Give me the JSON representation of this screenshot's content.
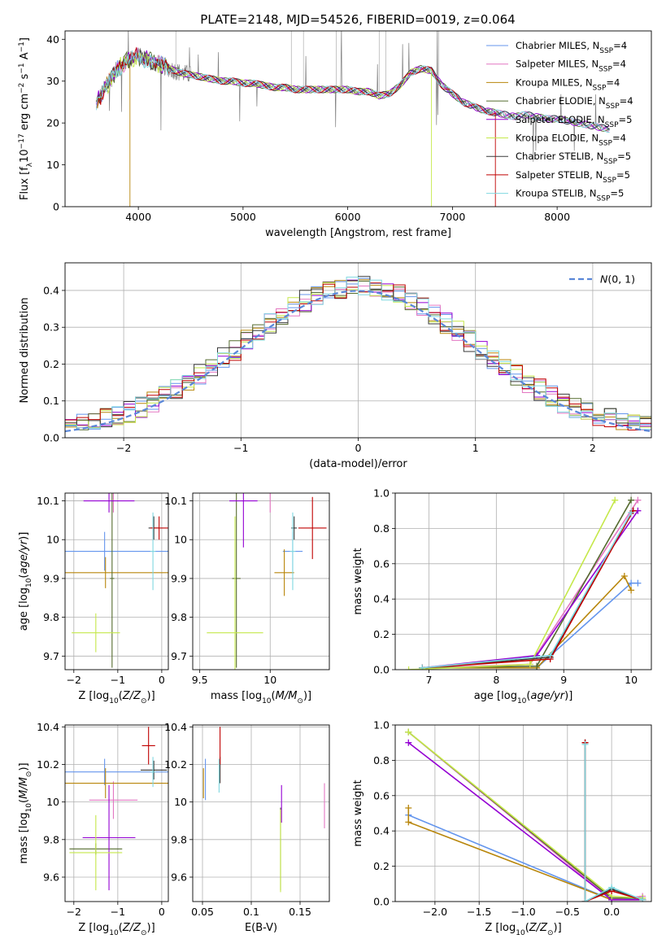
{
  "figure": {
    "title": "PLATE=2148, MJD=54526, FIBERID=0019, z=0.064"
  },
  "models": [
    {
      "name": "Chabrier MILES",
      "color": "#6495ed"
    },
    {
      "name": "Salpeter MILES",
      "color": "#e377c2"
    },
    {
      "name": "Kroupa MILES",
      "color": "#b8860b"
    },
    {
      "name": "Chabrier ELODIE",
      "color": "#556b2f"
    },
    {
      "name": "Salpeter ELODIE",
      "color": "#9400d3"
    },
    {
      "name": "Kroupa ELODIE",
      "color": "#c5e84a"
    },
    {
      "name": "Chabrier STELIB",
      "color": "#3a3a3a"
    },
    {
      "name": "Salpeter STELIB",
      "color": "#c00000"
    },
    {
      "name": "Kroupa STELIB",
      "color": "#7fd8e0"
    }
  ],
  "chart_data": [
    {
      "id": "spectrum",
      "type": "line",
      "xlabel": "wavelength [Angstrom, rest frame]",
      "ylabel": "Flux [f_λ 10^-17 erg cm^-2 s^-1 A^-1]",
      "xlim": [
        3300,
        8900
      ],
      "ylim": [
        0,
        42
      ],
      "xticks": [
        4000,
        5000,
        6000,
        7000,
        8000
      ],
      "yticks": [
        0,
        10,
        20,
        30,
        40
      ],
      "grid": false,
      "legend": [
        "Chabrier MILES, N_SSP=4",
        "Salpeter MILES, N_SSP=4",
        "Kroupa MILES, N_SSP=4",
        "Chabrier ELODIE, N_SSP=4",
        "Salpeter ELODIE, N_SSP=5",
        "Kroupa ELODIE, N_SSP=4",
        "Chabrier STELIB, N_SSP=5",
        "Salpeter STELIB, N_SSP=5",
        "Kroupa STELIB, N_SSP=5"
      ],
      "legend_position": "top-right",
      "data_continuum": {
        "x": [
          3600,
          3700,
          3800,
          3900,
          4000,
          4100,
          4200,
          4300,
          4400,
          4500,
          4600,
          4700,
          4800,
          4900,
          5000,
          5100,
          5200,
          5300,
          5400,
          5500,
          5600,
          5700,
          5800,
          5900,
          6000,
          6100,
          6200,
          6300,
          6400,
          6500,
          6600,
          6700,
          6800,
          6900,
          7000,
          7100,
          7200,
          7300,
          7400,
          7500,
          7600,
          7700,
          7800,
          7900,
          8000,
          8100,
          8200,
          8300,
          8400,
          8500
        ],
        "y": [
          25,
          29,
          33,
          35,
          36,
          35,
          34,
          33,
          32,
          31.5,
          31,
          30.5,
          30,
          30,
          29.5,
          29.5,
          29,
          28.5,
          28.5,
          28,
          28,
          28,
          28,
          28,
          28,
          27.5,
          27.5,
          26.5,
          27,
          29,
          32,
          33,
          32.5,
          29,
          27,
          25,
          24,
          23,
          22.5,
          22,
          21.5,
          22,
          21.5,
          21,
          21,
          20.5,
          20,
          19.5,
          19,
          18.5
        ]
      },
      "model_drops": [
        {
          "model": "Kroupa MILES",
          "x": 3920
        },
        {
          "model": "Kroupa ELODIE",
          "x": 6800
        },
        {
          "model": "Salpeter STELIB",
          "x": 7410
        }
      ]
    },
    {
      "id": "residual-histogram",
      "type": "line",
      "xlabel": "(data-model)/error",
      "ylabel": "Normed distribution",
      "xlim": [
        -2.5,
        2.5
      ],
      "ylim": [
        0,
        0.475
      ],
      "xticks": [
        -2,
        -1,
        0,
        1,
        2
      ],
      "yticks": [
        0.0,
        0.1,
        0.2,
        0.3,
        0.4
      ],
      "grid": true,
      "legend": [
        "N(0,1)"
      ],
      "legend_position": "top-right",
      "reference_curve": {
        "name": "N(0,1)",
        "mean": 0,
        "sigma": 1,
        "style": "dashed",
        "color": "#5a87d8"
      },
      "histogram_bin_width": 0.1
    },
    {
      "id": "age-vs-z",
      "type": "scatter",
      "xlabel": "Z [log10(Z/Z⊙)]",
      "ylabel": "age [log10(age/yr)]",
      "xlim": [
        -2.2,
        0.15
      ],
      "ylim": [
        9.665,
        10.12
      ],
      "xticks": [
        -2,
        -1,
        0
      ],
      "yticks": [
        9.7,
        9.8,
        9.9,
        10.0,
        10.1
      ],
      "grid": true,
      "points": [
        {
          "model": "Chabrier MILES",
          "x": -1.3,
          "xerr": 1.65,
          "y": 9.97,
          "yerr": 0.05
        },
        {
          "model": "Salpeter MILES",
          "x": -1.1,
          "xerr": 0.85,
          "y": 10.13,
          "yerr": 0.06
        },
        {
          "model": "Kroupa MILES",
          "x": -1.28,
          "xerr": 1.62,
          "y": 9.915,
          "yerr": 0.04
        },
        {
          "model": "Chabrier ELODIE",
          "x": -1.13,
          "xerr": 0.05,
          "y": 9.9,
          "yerr": 0.23
        },
        {
          "model": "Salpeter ELODIE",
          "x": -1.2,
          "xerr": 0.58,
          "y": 10.1,
          "yerr": 0.03
        },
        {
          "model": "Kroupa ELODIE",
          "x": -1.5,
          "xerr": 0.55,
          "y": 9.76,
          "yerr": 0.05
        },
        {
          "model": "Chabrier STELIB",
          "x": -0.18,
          "xerr": 0.12,
          "y": 10.03,
          "yerr": 0.03
        },
        {
          "model": "Salpeter STELIB",
          "x": -0.06,
          "xerr": 0.2,
          "y": 10.03,
          "yerr": 0.03
        },
        {
          "model": "Kroupa STELIB",
          "x": -0.2,
          "xerr": 0.06,
          "y": 9.97,
          "yerr": 0.1
        }
      ]
    },
    {
      "id": "age-vs-mass",
      "type": "scatter",
      "xlabel": "mass [log10(M/M⊙)]",
      "ylabel": "",
      "xlim": [
        9.45,
        10.42
      ],
      "ylim": [
        9.665,
        10.12
      ],
      "xticks": [
        9.5,
        10.0
      ],
      "yticks": [
        9.7,
        9.8,
        9.9,
        10.0,
        10.1
      ],
      "grid": true,
      "points": [
        {
          "model": "Chabrier MILES",
          "x": 10.16,
          "xerr": 0.07,
          "y": 9.97,
          "yerr": 0.05
        },
        {
          "model": "Salpeter MILES",
          "x": 10.0,
          "xerr": 0.07,
          "y": 10.13,
          "yerr": 0.06
        },
        {
          "model": "Kroupa MILES",
          "x": 10.1,
          "xerr": 0.07,
          "y": 9.915,
          "yerr": 0.06
        },
        {
          "model": "Chabrier ELODIE",
          "x": 9.76,
          "xerr": 0.03,
          "y": 9.9,
          "yerr": 0.23
        },
        {
          "model": "Salpeter ELODIE",
          "x": 9.81,
          "xerr": 0.1,
          "y": 10.1,
          "yerr": 0.12
        },
        {
          "model": "Kroupa ELODIE",
          "x": 9.75,
          "xerr": 0.2,
          "y": 9.76,
          "yerr": 0.3
        },
        {
          "model": "Chabrier STELIB",
          "x": 10.17,
          "xerr": 0.02,
          "y": 10.03,
          "yerr": 0.03
        },
        {
          "model": "Salpeter STELIB",
          "x": 10.3,
          "xerr": 0.1,
          "y": 10.03,
          "yerr": 0.08
        },
        {
          "model": "Kroupa STELIB",
          "x": 10.16,
          "xerr": 0.02,
          "y": 9.97,
          "yerr": 0.1
        }
      ]
    },
    {
      "id": "mass-weight-vs-age",
      "type": "line",
      "xlabel": "age [log10(age/yr)]",
      "ylabel": "mass weight",
      "xlim": [
        6.5,
        10.3
      ],
      "ylim": [
        0,
        1.0
      ],
      "xticks": [
        7,
        8,
        9,
        10
      ],
      "yticks": [
        0.0,
        0.2,
        0.4,
        0.6,
        0.8,
        1.0
      ],
      "grid": true,
      "series": [
        {
          "model": "Chabrier MILES",
          "x": [
            6.9,
            8.6,
            10.0,
            10.1
          ],
          "y": [
            0.01,
            0.01,
            0.49,
            0.49
          ]
        },
        {
          "model": "Salpeter MILES",
          "x": [
            6.9,
            8.5,
            10.1
          ],
          "y": [
            0.01,
            0.03,
            0.96
          ]
        },
        {
          "model": "Kroupa MILES",
          "x": [
            6.9,
            8.6,
            9.9,
            10.0
          ],
          "y": [
            0.01,
            0.01,
            0.53,
            0.45
          ]
        },
        {
          "model": "Chabrier ELODIE",
          "x": [
            6.9,
            8.6,
            10.0
          ],
          "y": [
            0.01,
            0.02,
            0.96
          ]
        },
        {
          "model": "Salpeter ELODIE",
          "x": [
            6.9,
            8.6,
            10.1
          ],
          "y": [
            0.01,
            0.08,
            0.9
          ]
        },
        {
          "model": "Kroupa ELODIE",
          "x": [
            6.7,
            8.5,
            9.76
          ],
          "y": [
            0.0,
            0.03,
            0.96
          ]
        },
        {
          "model": "Chabrier STELIB",
          "x": [
            6.9,
            8.8,
            10.03
          ],
          "y": [
            0.01,
            0.07,
            0.9
          ]
        },
        {
          "model": "Salpeter STELIB",
          "x": [
            6.9,
            8.8,
            10.03
          ],
          "y": [
            0.01,
            0.06,
            0.9
          ]
        },
        {
          "model": "Kroupa STELIB",
          "x": [
            6.9,
            8.8,
            10.0
          ],
          "y": [
            0.01,
            0.08,
            0.89
          ]
        }
      ]
    },
    {
      "id": "mass-vs-z",
      "type": "scatter",
      "xlabel": "Z [log10(Z/Z⊙)]",
      "ylabel": "mass [log10(M/M⊙)]",
      "xlim": [
        -2.2,
        0.15
      ],
      "ylim": [
        9.47,
        10.41
      ],
      "xticks": [
        -2,
        -1,
        0
      ],
      "yticks": [
        9.6,
        9.8,
        10.0,
        10.2,
        10.4
      ],
      "grid": true,
      "points": [
        {
          "model": "Chabrier MILES",
          "x": -1.3,
          "xerr": 1.65,
          "y": 10.16,
          "yerr": 0.07
        },
        {
          "model": "Salpeter MILES",
          "x": -1.1,
          "xerr": 0.55,
          "y": 10.01,
          "yerr": 0.1
        },
        {
          "model": "Kroupa MILES",
          "x": -1.28,
          "xerr": 1.62,
          "y": 10.1,
          "yerr": 0.08
        },
        {
          "model": "Chabrier ELODIE",
          "x": -1.5,
          "xerr": 0.6,
          "y": 9.75,
          "yerr": 0.03
        },
        {
          "model": "Salpeter ELODIE",
          "x": -1.2,
          "xerr": 0.6,
          "y": 9.81,
          "yerr": 0.28
        },
        {
          "model": "Kroupa ELODIE",
          "x": -1.5,
          "xerr": 0.6,
          "y": 9.73,
          "yerr": 0.2
        },
        {
          "model": "Chabrier STELIB",
          "x": -0.18,
          "xerr": 0.3,
          "y": 10.17,
          "yerr": 0.05
        },
        {
          "model": "Salpeter STELIB",
          "x": -0.3,
          "xerr": 0.15,
          "y": 10.3,
          "yerr": 0.1
        },
        {
          "model": "Kroupa STELIB",
          "x": -0.2,
          "xerr": 0.06,
          "y": 10.16,
          "yerr": 0.08
        }
      ]
    },
    {
      "id": "mass-vs-ebv",
      "type": "scatter",
      "xlabel": "E(B-V)",
      "ylabel": "",
      "xlim": [
        0.04,
        0.18
      ],
      "ylim": [
        9.47,
        10.41
      ],
      "xticks": [
        0.05,
        0.1,
        0.15
      ],
      "yticks": [
        9.6,
        9.8,
        10.0,
        10.2,
        10.4
      ],
      "grid": true,
      "points": [
        {
          "model": "Chabrier MILES",
          "x": 0.053,
          "y": 10.12,
          "yerr": 0.11
        },
        {
          "model": "Salpeter MILES",
          "x": 0.175,
          "y": 9.98,
          "yerr": 0.12
        },
        {
          "model": "Kroupa MILES",
          "x": 0.051,
          "y": 10.1,
          "yerr": 0.08
        },
        {
          "model": "Chabrier ELODIE",
          "x": 0.13,
          "y": 9.75,
          "yerr": 0.22
        },
        {
          "model": "Salpeter ELODIE",
          "x": 0.131,
          "y": 9.99,
          "yerr": 0.1
        },
        {
          "model": "Kroupa ELODIE",
          "x": 0.13,
          "y": 9.74,
          "yerr": 0.22
        },
        {
          "model": "Chabrier STELIB",
          "x": 0.068,
          "y": 10.17,
          "yerr": 0.07
        },
        {
          "model": "Salpeter STELIB",
          "x": 0.068,
          "y": 10.3,
          "yerr": 0.1
        },
        {
          "model": "Kroupa STELIB",
          "x": 0.067,
          "y": 10.14,
          "yerr": 0.09
        }
      ]
    },
    {
      "id": "mass-weight-vs-z",
      "type": "line",
      "xlabel": "Z [log10(Z/Z⊙)]",
      "ylabel": "mass weight",
      "xlim": [
        -2.45,
        0.45
      ],
      "ylim": [
        0,
        1.0
      ],
      "xticks": [
        -2.0,
        -1.5,
        -1.0,
        -0.5,
        0.0
      ],
      "xtick_labels": [
        "−2.0",
        "−1.5",
        "−1.0",
        "−0.5",
        "0.0"
      ],
      "yticks": [
        0.0,
        0.2,
        0.4,
        0.6,
        0.8,
        1.0
      ],
      "grid": true,
      "series": [
        {
          "model": "Chabrier MILES",
          "x": [
            -2.3,
            0.0,
            0.0,
            0.35
          ],
          "y": [
            0.49,
            0.01,
            0.02,
            0.01
          ]
        },
        {
          "model": "Salpeter MILES",
          "x": [
            -2.3,
            0.0,
            0.35
          ],
          "y": [
            0.96,
            0.01,
            0.03
          ]
        },
        {
          "model": "Kroupa MILES",
          "x": [
            -2.3,
            -2.3,
            0.0,
            0.35
          ],
          "y": [
            0.53,
            0.45,
            0.01,
            0.01
          ]
        },
        {
          "model": "Chabrier ELODIE",
          "x": [
            -2.3,
            0.0,
            0.35
          ],
          "y": [
            0.96,
            0.02,
            0.02
          ]
        },
        {
          "model": "Salpeter ELODIE",
          "x": [
            -2.3,
            0.0,
            0.35
          ],
          "y": [
            0.9,
            0.01,
            0.01
          ]
        },
        {
          "model": "Kroupa ELODIE",
          "x": [
            -2.3,
            0.0,
            0.35
          ],
          "y": [
            0.96,
            0.03,
            0.02
          ]
        },
        {
          "model": "Chabrier STELIB",
          "x": [
            -0.3,
            -0.3,
            0.0,
            0.35
          ],
          "y": [
            0.9,
            0.0,
            0.07,
            0.01
          ]
        },
        {
          "model": "Salpeter STELIB",
          "x": [
            -0.3,
            -0.3,
            0.0,
            0.35
          ],
          "y": [
            0.9,
            0.0,
            0.06,
            0.01
          ]
        },
        {
          "model": "Kroupa STELIB",
          "x": [
            -0.3,
            -0.3,
            0.0,
            0.35
          ],
          "y": [
            0.89,
            0.0,
            0.08,
            0.01
          ]
        }
      ]
    }
  ]
}
